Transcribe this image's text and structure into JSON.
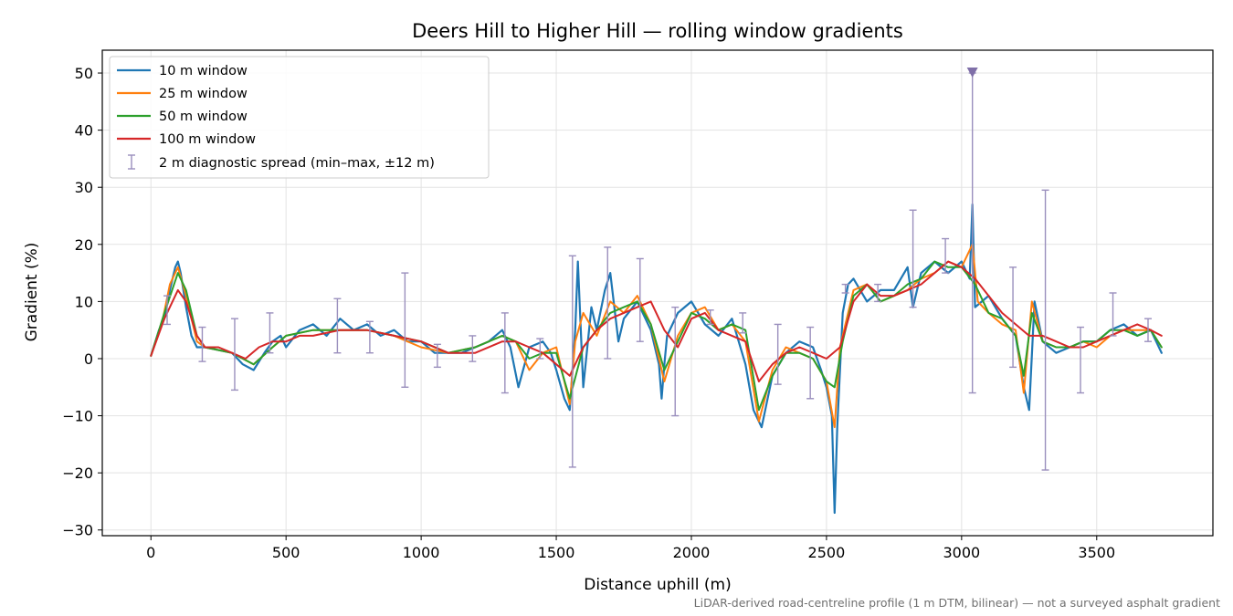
{
  "chart_data": {
    "type": "line",
    "title": "Deers Hill to Higher Hill — rolling window gradients",
    "xlabel": "Distance uphill (m)",
    "ylabel": "Gradient (%)",
    "xlim": [
      -180,
      3930
    ],
    "ylim": [
      -31,
      54
    ],
    "xticks": [
      0,
      500,
      1000,
      1500,
      2000,
      2500,
      3000,
      3500
    ],
    "yticks": [
      -30,
      -20,
      -10,
      0,
      10,
      20,
      30,
      40,
      50
    ],
    "grid": true,
    "legend_position": "top-left",
    "footnote": "LiDAR-derived road-centreline profile (1 m DTM, bilinear) — not a surveyed asphalt gradient",
    "series": [
      {
        "name": "10 m window",
        "color": "#1f77b4",
        "x": [
          0,
          30,
          50,
          70,
          90,
          100,
          110,
          130,
          150,
          170,
          200,
          250,
          300,
          340,
          380,
          420,
          450,
          480,
          500,
          550,
          600,
          650,
          700,
          750,
          800,
          850,
          900,
          950,
          1000,
          1050,
          1100,
          1150,
          1200,
          1250,
          1300,
          1330,
          1360,
          1400,
          1450,
          1480,
          1500,
          1530,
          1550,
          1570,
          1580,
          1600,
          1630,
          1650,
          1680,
          1700,
          1730,
          1750,
          1800,
          1850,
          1880,
          1890,
          1900,
          1910,
          1950,
          2000,
          2050,
          2100,
          2150,
          2200,
          2230,
          2260,
          2300,
          2350,
          2400,
          2450,
          2480,
          2500,
          2520,
          2530,
          2540,
          2560,
          2580,
          2600,
          2650,
          2700,
          2750,
          2800,
          2820,
          2850,
          2900,
          2950,
          3000,
          3030,
          3040,
          3050,
          3100,
          3150,
          3200,
          3230,
          3250,
          3270,
          3300,
          3350,
          3400,
          3450,
          3500,
          3550,
          3600,
          3650,
          3700,
          3740
        ],
        "values": [
          0.5,
          5,
          7,
          12,
          16,
          17,
          15,
          9,
          4,
          2,
          2,
          1.5,
          1,
          -1,
          -2,
          1,
          3,
          4,
          2,
          5,
          6,
          4,
          7,
          5,
          6,
          4,
          5,
          3,
          3,
          1,
          1,
          1,
          2,
          3,
          5,
          2,
          -5,
          2,
          3,
          1,
          -2,
          -7,
          -9,
          5,
          17,
          -5,
          9,
          5,
          12,
          15,
          3,
          7,
          10,
          5,
          -1,
          -7,
          -1,
          4,
          8,
          10,
          6,
          4,
          7,
          -1,
          -9,
          -12,
          -3,
          1,
          3,
          2,
          -2,
          -5,
          -10,
          -27,
          -12,
          8,
          13,
          14,
          10,
          12,
          12,
          16,
          9,
          15,
          17,
          15,
          17,
          14,
          27,
          9,
          11,
          7,
          4,
          -5,
          -9,
          10,
          3,
          1,
          2,
          3,
          3,
          5,
          6,
          4,
          5,
          1
        ]
      },
      {
        "name": "25 m window",
        "color": "#ff7f0e",
        "x": [
          0,
          40,
          70,
          100,
          130,
          170,
          200,
          300,
          380,
          450,
          500,
          600,
          700,
          800,
          900,
          1000,
          1100,
          1200,
          1300,
          1350,
          1400,
          1450,
          1500,
          1550,
          1570,
          1600,
          1650,
          1700,
          1750,
          1800,
          1850,
          1900,
          1950,
          2000,
          2050,
          2100,
          2150,
          2200,
          2250,
          2300,
          2350,
          2400,
          2450,
          2500,
          2530,
          2550,
          2600,
          2650,
          2700,
          2800,
          2850,
          2900,
          2950,
          3000,
          3040,
          3060,
          3100,
          3150,
          3200,
          3230,
          3260,
          3300,
          3350,
          3400,
          3450,
          3500,
          3550,
          3600,
          3650,
          3700,
          3740
        ],
        "values": [
          0.5,
          6,
          13,
          16,
          11,
          3,
          2,
          1,
          -1,
          2,
          4,
          5,
          5,
          5,
          4,
          2,
          1,
          2,
          4,
          3,
          -2,
          1,
          2,
          -8,
          3,
          8,
          4,
          10,
          8,
          11,
          6,
          -4,
          4,
          8,
          9,
          5,
          6,
          3,
          -11,
          -2,
          2,
          1,
          0,
          -4,
          -12,
          2,
          12,
          13,
          10,
          12,
          14,
          15,
          17,
          16,
          20,
          10,
          8,
          6,
          5,
          -6,
          10,
          3,
          2,
          2,
          3,
          2,
          4,
          5,
          5,
          5,
          2
        ]
      },
      {
        "name": "50 m window",
        "color": "#2ca02c",
        "x": [
          0,
          50,
          100,
          130,
          170,
          200,
          300,
          380,
          450,
          500,
          600,
          700,
          800,
          900,
          1000,
          1100,
          1200,
          1300,
          1350,
          1400,
          1450,
          1500,
          1550,
          1600,
          1650,
          1700,
          1750,
          1800,
          1850,
          1900,
          1950,
          2000,
          2050,
          2100,
          2150,
          2200,
          2250,
          2300,
          2350,
          2400,
          2450,
          2500,
          2530,
          2560,
          2600,
          2650,
          2700,
          2750,
          2800,
          2850,
          2900,
          2950,
          3000,
          3050,
          3100,
          3150,
          3200,
          3230,
          3260,
          3300,
          3350,
          3400,
          3450,
          3500,
          3550,
          3600,
          3650,
          3700,
          3740
        ],
        "values": [
          0.5,
          8,
          15,
          12,
          4,
          2,
          1,
          -1,
          2,
          4,
          5,
          5,
          5,
          4,
          3,
          1,
          2,
          4,
          3,
          0,
          1,
          1,
          -7,
          2,
          5,
          8,
          9,
          10,
          6,
          -2,
          3,
          8,
          7,
          5,
          6,
          5,
          -9,
          -3,
          1,
          1,
          0,
          -4,
          -5,
          3,
          11,
          13,
          10,
          11,
          13,
          14,
          17,
          16,
          16,
          13,
          8,
          7,
          4,
          -3,
          8,
          3,
          2,
          2,
          3,
          3,
          5,
          5,
          4,
          5,
          2
        ]
      },
      {
        "name": "100 m window",
        "color": "#d62728",
        "x": [
          0,
          50,
          100,
          130,
          170,
          200,
          250,
          300,
          350,
          400,
          450,
          500,
          550,
          600,
          700,
          800,
          900,
          1000,
          1100,
          1200,
          1300,
          1350,
          1400,
          1450,
          1500,
          1550,
          1600,
          1650,
          1700,
          1750,
          1800,
          1850,
          1900,
          1950,
          2000,
          2050,
          2100,
          2150,
          2200,
          2250,
          2300,
          2350,
          2400,
          2450,
          2500,
          2550,
          2600,
          2650,
          2700,
          2750,
          2800,
          2850,
          2900,
          2950,
          3000,
          3050,
          3100,
          3150,
          3200,
          3250,
          3300,
          3350,
          3400,
          3450,
          3500,
          3550,
          3600,
          3650,
          3700,
          3740
        ],
        "values": [
          0.5,
          7,
          12,
          10,
          4,
          2,
          2,
          1,
          0,
          2,
          3,
          3,
          4,
          4,
          5,
          5,
          4,
          3,
          1,
          1,
          3,
          3,
          2,
          1,
          -1,
          -3,
          2,
          5,
          7,
          8,
          9,
          10,
          5,
          2,
          7,
          8,
          5,
          4,
          3,
          -4,
          -1,
          1,
          2,
          1,
          0,
          2,
          10,
          13,
          11,
          11,
          12,
          13,
          15,
          17,
          16,
          14,
          11,
          8,
          6,
          4,
          4,
          3,
          2,
          2,
          3,
          4,
          5,
          6,
          5,
          4
        ]
      }
    ],
    "errorbars": {
      "name": "2 m diagnostic spread (min–max, ±12 m)",
      "color": "#9a8fbd",
      "points": [
        {
          "x": 60,
          "low": 6,
          "high": 11
        },
        {
          "x": 190,
          "low": -0.5,
          "high": 5.5
        },
        {
          "x": 310,
          "low": -5.5,
          "high": 7
        },
        {
          "x": 440,
          "low": 1,
          "high": 8
        },
        {
          "x": 690,
          "low": 1,
          "high": 10.5
        },
        {
          "x": 810,
          "low": 1,
          "high": 6.5
        },
        {
          "x": 940,
          "low": -5,
          "high": 15
        },
        {
          "x": 1060,
          "low": -1.5,
          "high": 2.5
        },
        {
          "x": 1190,
          "low": -0.5,
          "high": 4
        },
        {
          "x": 1310,
          "low": -6,
          "high": 8
        },
        {
          "x": 1440,
          "low": 0,
          "high": 3.5
        },
        {
          "x": 1560,
          "low": -19,
          "high": 18
        },
        {
          "x": 1690,
          "low": 0,
          "high": 19.5
        },
        {
          "x": 1810,
          "low": 3,
          "high": 17.5
        },
        {
          "x": 1940,
          "low": -10,
          "high": 9
        },
        {
          "x": 2070,
          "low": 6,
          "high": 8.5
        },
        {
          "x": 2190,
          "low": 4.5,
          "high": 8
        },
        {
          "x": 2320,
          "low": -4.5,
          "high": 6
        },
        {
          "x": 2440,
          "low": -7,
          "high": 5.5
        },
        {
          "x": 2570,
          "low": 11.5,
          "high": 13
        },
        {
          "x": 2690,
          "low": 10,
          "high": 13
        },
        {
          "x": 2820,
          "low": 9,
          "high": 26
        },
        {
          "x": 2940,
          "low": 15,
          "high": 21
        },
        {
          "x": 3040,
          "low": -6,
          "high": 50
        },
        {
          "x": 3190,
          "low": -1.5,
          "high": 16
        },
        {
          "x": 3310,
          "low": -19.5,
          "high": 29.5
        },
        {
          "x": 3440,
          "low": -6,
          "high": 5.5
        },
        {
          "x": 3560,
          "low": 4,
          "high": 11.5
        },
        {
          "x": 3690,
          "low": 3,
          "high": 7
        }
      ],
      "clipped_marker": {
        "x": 3040,
        "y": 50
      }
    }
  }
}
